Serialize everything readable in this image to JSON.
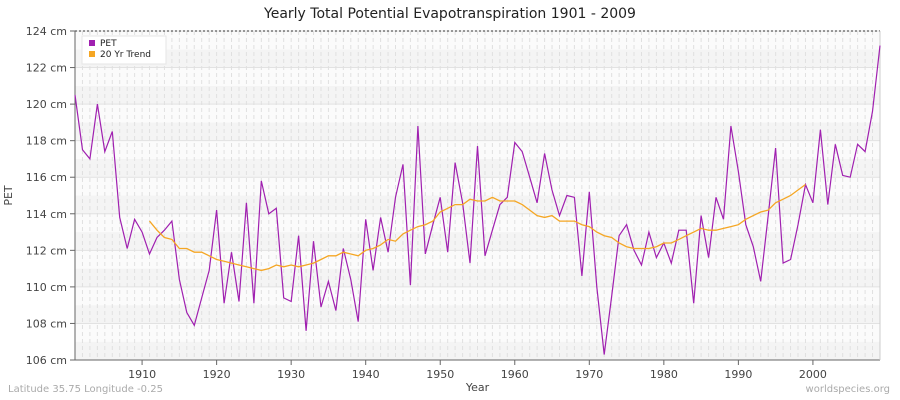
{
  "chart_data": {
    "type": "line",
    "title": "Yearly Total Potential Evapotranspiration 1901 - 2009",
    "xlabel": "Year",
    "ylabel": "PET",
    "y_unit": "cm",
    "xlim": [
      1901,
      2009
    ],
    "ylim": [
      106,
      124
    ],
    "x_ticks": [
      1910,
      1920,
      1930,
      1940,
      1950,
      1960,
      1970,
      1980,
      1990,
      2000
    ],
    "y_ticks": [
      106,
      108,
      110,
      112,
      114,
      116,
      118,
      120,
      122,
      124
    ],
    "grid": true,
    "legend_position": "top-left",
    "series": [
      {
        "name": "PET",
        "color": "#a020b0",
        "x_start": 1901,
        "values": [
          120.5,
          117.5,
          117.0,
          120.0,
          117.4,
          118.5,
          113.8,
          112.1,
          113.7,
          113.0,
          111.8,
          112.7,
          113.1,
          113.6,
          110.4,
          108.6,
          107.9,
          109.4,
          110.9,
          114.2,
          109.1,
          111.9,
          109.2,
          114.6,
          109.1,
          115.8,
          114.0,
          114.3,
          109.4,
          109.2,
          112.8,
          107.6,
          112.5,
          108.9,
          110.3,
          108.7,
          112.1,
          110.4,
          108.1,
          113.7,
          110.9,
          113.8,
          111.9,
          114.9,
          116.7,
          110.1,
          118.8,
          111.8,
          113.4,
          114.9,
          111.9,
          116.8,
          114.6,
          111.3,
          117.7,
          111.7,
          113.1,
          114.5,
          114.9,
          117.9,
          117.4,
          116.0,
          114.6,
          117.3,
          115.3,
          113.9,
          115.0,
          114.9,
          110.6,
          115.2,
          110.0,
          106.3,
          109.5,
          112.8,
          113.4,
          112.0,
          111.2,
          113.0,
          111.6,
          112.4,
          111.3,
          113.1,
          113.1,
          109.1,
          113.9,
          111.6,
          114.9,
          113.7,
          118.8,
          116.3,
          113.4,
          112.2,
          110.3,
          113.9,
          117.6,
          111.3,
          111.5,
          113.4,
          115.6,
          114.6,
          118.6,
          114.5,
          117.8,
          116.1,
          116.0,
          117.8,
          117.4,
          119.6,
          123.2
        ]
      },
      {
        "name": "20 Yr Trend",
        "color": "#f5a623",
        "x_start": 1911,
        "values": [
          113.6,
          113.1,
          112.7,
          112.6,
          112.1,
          112.1,
          111.9,
          111.9,
          111.7,
          111.5,
          111.4,
          111.3,
          111.2,
          111.1,
          111.0,
          110.9,
          111.0,
          111.2,
          111.1,
          111.2,
          111.1,
          111.2,
          111.3,
          111.5,
          111.7,
          111.7,
          111.9,
          111.8,
          111.7,
          112.0,
          112.1,
          112.3,
          112.6,
          112.5,
          112.9,
          113.1,
          113.3,
          113.4,
          113.6,
          114.1,
          114.3,
          114.5,
          114.5,
          114.8,
          114.7,
          114.7,
          114.9,
          114.7,
          114.7,
          114.7,
          114.5,
          114.2,
          113.9,
          113.8,
          113.9,
          113.6,
          113.6,
          113.6,
          113.4,
          113.3,
          113.0,
          112.8,
          112.7,
          112.4,
          112.2,
          112.1,
          112.1,
          112.1,
          112.2,
          112.4,
          112.4,
          112.6,
          112.8,
          113.0,
          113.2,
          113.1,
          113.1,
          113.2,
          113.3,
          113.4,
          113.7,
          113.9,
          114.1,
          114.2,
          114.6,
          114.8,
          115.0,
          115.3,
          115.6
        ]
      }
    ]
  },
  "footer": {
    "location": "Latitude 35.75 Longitude -0.25",
    "site": "worldspecies.org"
  }
}
